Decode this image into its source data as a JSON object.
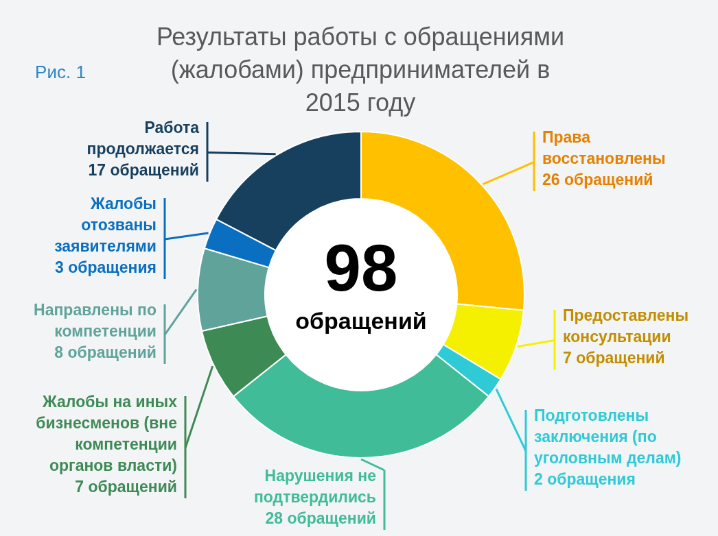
{
  "chart_data": {
    "type": "donut",
    "title": "Результаты работы с обращениями\n(жалобами) предпринимателей в\n2015 году",
    "categories": [
      "Права\nвосстановлены",
      "Предоставлены\nконсультации",
      "Подготовлены\nзаключения (по\nуголовным делам)",
      "Нарушения не\nподтвердились",
      "Жалобы на иных\nбизнесменов (вне\nкомпетенции\nорганов власти)",
      "Направлены по\nкомпетенции",
      "Жалобы\nотозваны\nзаявителями",
      "Работа\nпродолжается"
    ],
    "values": [
      26,
      7,
      2,
      28,
      7,
      8,
      3,
      17
    ],
    "value_labels": [
      "26 обращений",
      "7 обращений",
      "2 обращения",
      "28 обращений",
      "7 обращений",
      "8 обращений",
      "3 обращения",
      "17 обращений"
    ],
    "colors": [
      "#ffc000",
      "#f5f000",
      "#2ecad6",
      "#40bc98",
      "#3e8a55",
      "#5fa39b",
      "#0a6fc0",
      "#17405f"
    ],
    "annotations": [
      "Рис. 1",
      "98",
      "обращений"
    ]
  }
}
